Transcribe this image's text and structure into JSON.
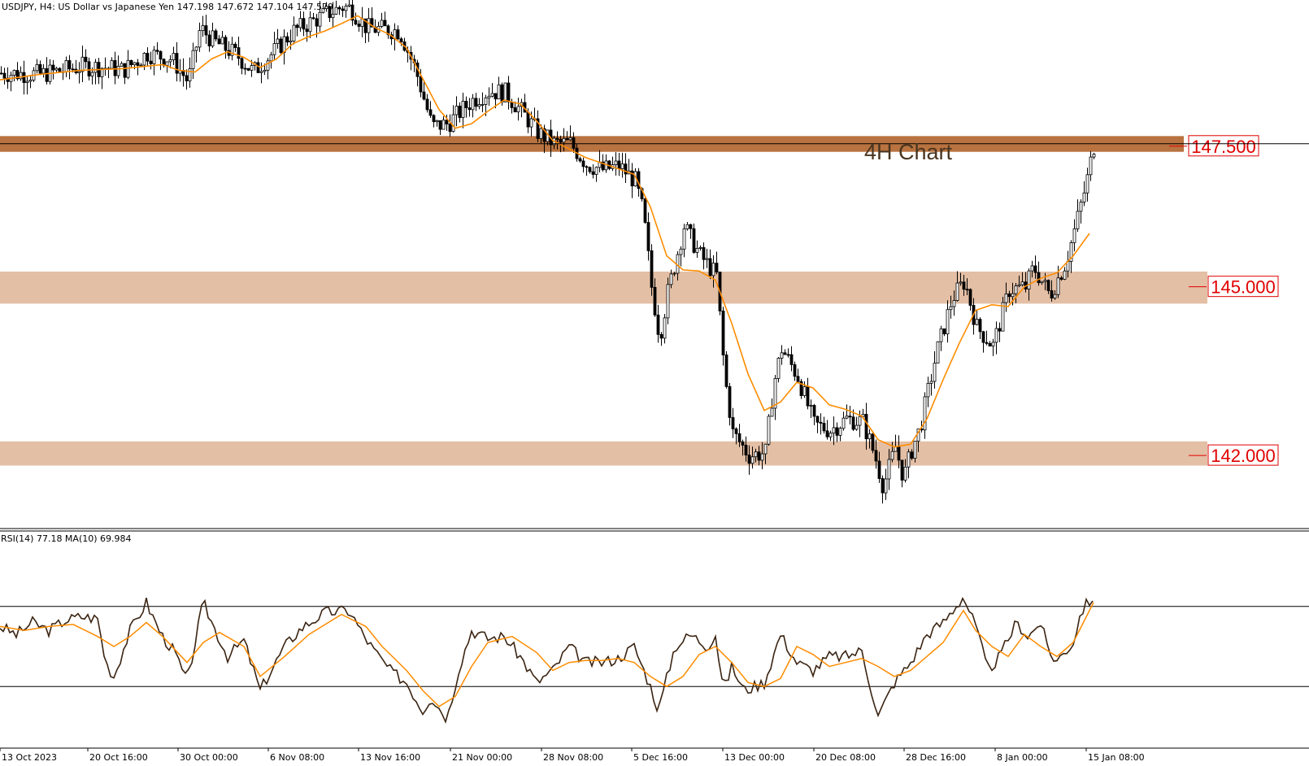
{
  "header": {
    "symbol_line": "USDJPY, H4:  US Dollar vs Japanese Yen  147.198 147.672 147.104 147.579",
    "rsi_line": "RSI(14) 77.18 MA(10) 69.984"
  },
  "annotation": "4H Chart",
  "colors": {
    "bull_candle": "#000000",
    "bear_candle": "#000000",
    "ma_line": "#ff8c00",
    "rsi_line": "#3b2412",
    "rsi_ma": "#ff8c00",
    "zone_light": "#e3bfa5",
    "zone_dark": "#b87340",
    "level_label": "#e00000"
  },
  "chart_data": [
    {
      "type": "candlestick",
      "symbol": "USDJPY",
      "timeframe": "H4",
      "ylim": [
        140.7,
        150.1
      ],
      "levels": [
        {
          "label": "147.500",
          "price": 147.5,
          "zone": [
            147.4,
            147.68
          ],
          "shade": "dark"
        },
        {
          "label": "145.000",
          "price": 145.0,
          "zone": [
            144.7,
            145.27
          ],
          "shade": "light"
        },
        {
          "label": "142.000",
          "price": 142.0,
          "zone": [
            141.82,
            142.25
          ],
          "shade": "light"
        }
      ],
      "series": [
        {
          "name": "Close",
          "x": [
            0,
            50,
            100,
            130,
            150,
            180,
            210,
            230,
            245,
            260,
            290,
            310,
            330,
            360,
            400,
            420,
            430,
            450,
            470,
            490,
            510,
            520,
            530,
            550,
            560,
            580,
            600,
            620,
            640,
            660,
            680,
            700,
            720,
            740,
            760,
            780,
            790,
            800,
            810,
            820,
            840,
            860,
            880,
            890,
            900,
            920,
            940,
            950,
            960,
            980,
            1000,
            1020,
            1040,
            1060,
            1075,
            1085,
            1100,
            1110,
            1120,
            1130,
            1150,
            1170,
            1185,
            1200,
            1220,
            1240,
            1260,
            1270,
            1290,
            1310,
            1320,
            1335,
            1345
          ],
          "y": [
            148.8,
            148.78,
            148.92,
            148.9,
            148.85,
            149.15,
            149.05,
            148.65,
            149.6,
            149.38,
            149.12,
            148.82,
            149.1,
            149.55,
            149.85,
            149.98,
            149.95,
            149.6,
            149.58,
            149.55,
            148.85,
            148.35,
            147.85,
            147.9,
            148.05,
            148.32,
            148.48,
            148.45,
            148.12,
            147.75,
            147.55,
            147.55,
            147.18,
            147.08,
            147.15,
            146.88,
            146.3,
            145.0,
            144.1,
            144.9,
            146.08,
            145.55,
            145.2,
            143.4,
            142.4,
            142.0,
            142.05,
            143.25,
            143.9,
            143.4,
            142.55,
            142.45,
            142.65,
            142.6,
            141.98,
            141.45,
            142.15,
            141.6,
            142.1,
            142.48,
            143.8,
            144.8,
            145.1,
            144.28,
            143.95,
            144.95,
            145.0,
            145.35,
            144.85,
            145.45,
            146.0,
            146.85,
            147.58
          ]
        },
        {
          "name": "MA",
          "x": [
            0,
            50,
            100,
            150,
            200,
            220,
            240,
            260,
            280,
            300,
            320,
            340,
            360,
            380,
            400,
            420,
            440,
            460,
            480,
            500,
            520,
            540,
            560,
            580,
            600,
            620,
            640,
            660,
            680,
            700,
            720,
            740,
            760,
            780,
            800,
            820,
            840,
            860,
            880,
            900,
            920,
            940,
            960,
            980,
            1000,
            1020,
            1040,
            1060,
            1080,
            1100,
            1120,
            1140,
            1160,
            1180,
            1200,
            1220,
            1240,
            1260,
            1280,
            1300,
            1320,
            1340
          ],
          "y": [
            148.68,
            148.78,
            148.85,
            148.88,
            148.95,
            148.85,
            148.82,
            149.05,
            149.18,
            149.08,
            148.9,
            149.05,
            149.32,
            149.45,
            149.55,
            149.68,
            149.82,
            149.62,
            149.48,
            149.25,
            148.7,
            148.15,
            147.82,
            147.9,
            148.12,
            148.32,
            148.25,
            147.95,
            147.6,
            147.45,
            147.3,
            147.2,
            147.1,
            147.0,
            146.42,
            145.55,
            145.3,
            145.28,
            145.12,
            144.35,
            143.45,
            142.8,
            142.95,
            143.3,
            143.2,
            142.9,
            142.82,
            142.7,
            142.28,
            142.15,
            142.2,
            142.65,
            143.35,
            144.0,
            144.58,
            144.68,
            144.65,
            145.0,
            145.15,
            145.25,
            145.55,
            145.95
          ]
        }
      ],
      "yaxis_side": "right"
    },
    {
      "type": "line",
      "indicator": "RSI(14)",
      "ylim": [
        0,
        100
      ],
      "levels": [
        70,
        30
      ],
      "series": [
        {
          "name": "RSI(14)",
          "x": [
            0,
            20,
            40,
            60,
            80,
            100,
            120,
            130,
            140,
            160,
            180,
            190,
            200,
            215,
            230,
            250,
            265,
            280,
            300,
            320,
            350,
            370,
            400,
            430,
            445,
            460,
            480,
            500,
            520,
            530,
            550,
            565,
            580,
            600,
            620,
            640,
            660,
            680,
            700,
            720,
            740,
            760,
            780,
            790,
            800,
            810,
            830,
            850,
            870,
            880,
            890,
            900,
            915,
            940,
            960,
            980,
            1000,
            1020,
            1040,
            1060,
            1080,
            1100,
            1120,
            1140,
            1160,
            1185,
            1200,
            1215,
            1230,
            1250,
            1265,
            1280,
            1290,
            1300,
            1320,
            1330,
            1345
          ],
          "y": [
            60,
            56,
            62,
            58,
            63,
            65,
            64,
            42,
            35,
            58,
            72,
            63,
            55,
            47,
            32,
            72,
            58,
            45,
            53,
            28,
            50,
            59,
            67,
            68,
            57,
            48,
            38,
            32,
            18,
            25,
            14,
            40,
            58,
            54,
            55,
            45,
            32,
            38,
            50,
            42,
            42,
            44,
            50,
            40,
            30,
            18,
            50,
            56,
            50,
            56,
            28,
            40,
            28,
            32,
            56,
            42,
            38,
            45,
            45,
            48,
            15,
            32,
            42,
            56,
            62,
            75,
            60,
            38,
            45,
            62,
            55,
            62,
            47,
            43,
            52,
            68,
            75
          ]
        },
        {
          "name": "MA(10)",
          "x": [
            0,
            30,
            60,
            90,
            120,
            140,
            160,
            180,
            200,
            230,
            250,
            270,
            300,
            320,
            350,
            380,
            420,
            450,
            470,
            500,
            520,
            540,
            560,
            580,
            600,
            630,
            660,
            680,
            700,
            720,
            740,
            760,
            780,
            800,
            820,
            840,
            860,
            880,
            900,
            920,
            940,
            960,
            980,
            1000,
            1020,
            1040,
            1060,
            1080,
            1100,
            1120,
            1140,
            1160,
            1185,
            1200,
            1220,
            1240,
            1260,
            1280,
            1300,
            1320,
            1345
          ],
          "y": [
            60,
            58,
            60,
            61,
            55,
            50,
            55,
            62,
            55,
            42,
            52,
            57,
            50,
            35,
            45,
            56,
            66,
            60,
            50,
            38,
            28,
            20,
            25,
            40,
            52,
            55,
            47,
            38,
            42,
            43,
            43,
            44,
            42,
            35,
            30,
            35,
            46,
            50,
            42,
            32,
            30,
            34,
            50,
            46,
            40,
            42,
            44,
            40,
            35,
            38,
            45,
            52,
            68,
            58,
            50,
            45,
            56,
            50,
            45,
            52,
            72
          ]
        }
      ]
    }
  ],
  "x_ticks": [
    "13 Oct 2023",
    "20 Oct 16:00",
    "30 Oct 00:00",
    "6 Nov 08:00",
    "13 Nov 16:00",
    "21 Nov 00:00",
    "28 Nov 08:00",
    "5 Dec 16:00",
    "13 Dec 00:00",
    "20 Dec 08:00",
    "28 Dec 16:00",
    "8 Jan 00:00",
    "15 Jan 08:00"
  ]
}
